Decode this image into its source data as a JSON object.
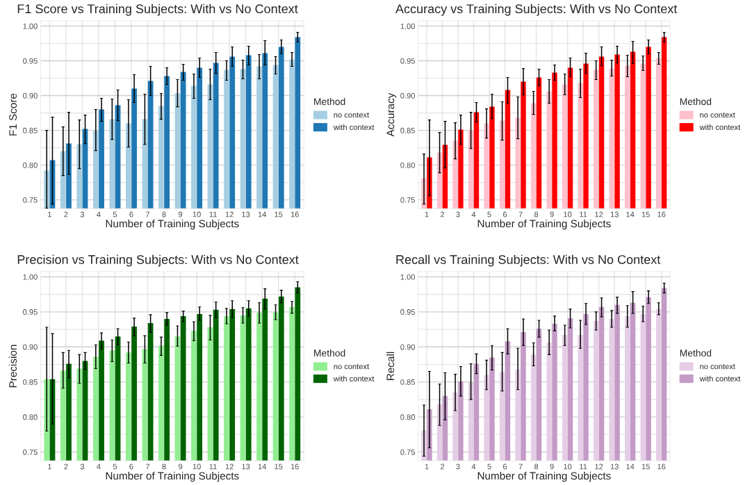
{
  "chart_data": [
    {
      "type": "bar",
      "title": "F1 Score vs Training Subjects: With vs No Context",
      "xlabel": "Number of Training Subjects",
      "ylabel": "F1 Score",
      "legend_title": "Method",
      "legend": "right",
      "grid": true,
      "categories": [
        "1",
        "2",
        "3",
        "4",
        "5",
        "6",
        "7",
        "8",
        "9",
        "10",
        "11",
        "12",
        "13",
        "14",
        "15",
        "16"
      ],
      "ylim": [
        0.7375,
        1.0075
      ],
      "yticks": [
        {
          "value": 0.75,
          "label": "0.75"
        },
        {
          "value": 0.8,
          "label": "0.80"
        },
        {
          "value": 0.85,
          "label": "0.85"
        },
        {
          "value": 0.9,
          "label": "0.90"
        },
        {
          "value": 0.95,
          "label": "0.95"
        },
        {
          "value": 1.0,
          "label": "1.00"
        }
      ],
      "series": [
        {
          "name": "no context",
          "color": "#a6cee3",
          "values": [
            0.792,
            0.82,
            0.83,
            0.85,
            0.866,
            0.86,
            0.866,
            0.885,
            0.903,
            0.914,
            0.916,
            0.937,
            0.938,
            0.942,
            0.944,
            0.952
          ],
          "errors": [
            [
              0.738,
              0.85
            ],
            [
              0.785,
              0.855
            ],
            [
              0.795,
              0.865
            ],
            [
              0.821,
              0.88
            ],
            [
              0.837,
              0.895
            ],
            [
              0.826,
              0.894
            ],
            [
              0.83,
              0.902
            ],
            [
              0.866,
              0.903
            ],
            [
              0.884,
              0.923
            ],
            [
              0.896,
              0.931
            ],
            [
              0.894,
              0.938
            ],
            [
              0.922,
              0.95
            ],
            [
              0.924,
              0.951
            ],
            [
              0.924,
              0.959
            ],
            [
              0.931,
              0.956
            ],
            [
              0.942,
              0.962
            ]
          ]
        },
        {
          "name": "with context",
          "color": "#1f78b4",
          "values": [
            0.807,
            0.831,
            0.852,
            0.88,
            0.886,
            0.91,
            0.921,
            0.928,
            0.934,
            0.94,
            0.947,
            0.956,
            0.958,
            0.961,
            0.97,
            0.984
          ],
          "errors": [
            [
              0.744,
              0.869
            ],
            [
              0.787,
              0.876
            ],
            [
              0.831,
              0.872
            ],
            [
              0.863,
              0.896
            ],
            [
              0.864,
              0.908
            ],
            [
              0.89,
              0.93
            ],
            [
              0.9,
              0.942
            ],
            [
              0.916,
              0.94
            ],
            [
              0.922,
              0.945
            ],
            [
              0.926,
              0.954
            ],
            [
              0.932,
              0.962
            ],
            [
              0.942,
              0.97
            ],
            [
              0.944,
              0.971
            ],
            [
              0.944,
              0.979
            ],
            [
              0.96,
              0.98
            ],
            [
              0.977,
              0.991
            ]
          ]
        }
      ]
    },
    {
      "type": "bar",
      "title": "Accuracy vs Training Subjects: With vs No Context",
      "xlabel": "Number of Training Subjects",
      "ylabel": "Accuracy",
      "legend_title": "Method",
      "legend": "right",
      "grid": true,
      "categories": [
        "1",
        "2",
        "3",
        "4",
        "5",
        "6",
        "7",
        "8",
        "9",
        "10",
        "11",
        "12",
        "13",
        "14",
        "15",
        "16"
      ],
      "ylim": [
        0.7375,
        1.0075
      ],
      "yticks": [
        {
          "value": 0.75,
          "label": "0.75"
        },
        {
          "value": 0.8,
          "label": "0.80"
        },
        {
          "value": 0.85,
          "label": "0.85"
        },
        {
          "value": 0.9,
          "label": "0.90"
        },
        {
          "value": 0.95,
          "label": "0.95"
        },
        {
          "value": 1.0,
          "label": "1.00"
        }
      ],
      "series": [
        {
          "name": "no context",
          "color": "#ffc0cb",
          "values": [
            0.781,
            0.818,
            0.835,
            0.85,
            0.86,
            0.864,
            0.868,
            0.889,
            0.906,
            0.916,
            0.918,
            0.937,
            0.939,
            0.943,
            0.946,
            0.954
          ],
          "errors": [
            [
              0.744,
              0.816
            ],
            [
              0.789,
              0.847
            ],
            [
              0.809,
              0.861
            ],
            [
              0.824,
              0.876
            ],
            [
              0.839,
              0.881
            ],
            [
              0.836,
              0.891
            ],
            [
              0.838,
              0.898
            ],
            [
              0.873,
              0.906
            ],
            [
              0.889,
              0.923
            ],
            [
              0.901,
              0.931
            ],
            [
              0.897,
              0.938
            ],
            [
              0.923,
              0.95
            ],
            [
              0.928,
              0.951
            ],
            [
              0.927,
              0.958
            ],
            [
              0.936,
              0.957
            ],
            [
              0.945,
              0.962
            ]
          ]
        },
        {
          "name": "with context",
          "color": "#ff0000",
          "values": [
            0.811,
            0.829,
            0.851,
            0.876,
            0.884,
            0.908,
            0.92,
            0.926,
            0.933,
            0.94,
            0.946,
            0.956,
            0.959,
            0.963,
            0.97,
            0.984
          ],
          "errors": [
            [
              0.756,
              0.865
            ],
            [
              0.796,
              0.863
            ],
            [
              0.83,
              0.872
            ],
            [
              0.862,
              0.89
            ],
            [
              0.867,
              0.902
            ],
            [
              0.889,
              0.926
            ],
            [
              0.901,
              0.939
            ],
            [
              0.914,
              0.938
            ],
            [
              0.922,
              0.944
            ],
            [
              0.927,
              0.954
            ],
            [
              0.932,
              0.961
            ],
            [
              0.943,
              0.97
            ],
            [
              0.947,
              0.971
            ],
            [
              0.946,
              0.978
            ],
            [
              0.96,
              0.98
            ],
            [
              0.977,
              0.991
            ]
          ]
        }
      ]
    },
    {
      "type": "bar",
      "title": "Precision vs Training Subjects: With vs No Context",
      "xlabel": "Number of Training Subjects",
      "ylabel": "Precision",
      "legend_title": "Method",
      "legend": "right",
      "grid": true,
      "categories": [
        "1",
        "2",
        "3",
        "4",
        "5",
        "6",
        "7",
        "8",
        "9",
        "10",
        "11",
        "12",
        "13",
        "14",
        "15",
        "16"
      ],
      "ylim": [
        0.7375,
        1.0075
      ],
      "yticks": [
        {
          "value": 0.75,
          "label": "0.75"
        },
        {
          "value": 0.8,
          "label": "0.80"
        },
        {
          "value": 0.85,
          "label": "0.85"
        },
        {
          "value": 0.9,
          "label": "0.90"
        },
        {
          "value": 0.95,
          "label": "0.95"
        },
        {
          "value": 1.0,
          "label": "1.00"
        }
      ],
      "series": [
        {
          "name": "no context",
          "color": "#90ee90",
          "values": [
            0.854,
            0.866,
            0.869,
            0.886,
            0.895,
            0.892,
            0.897,
            0.902,
            0.915,
            0.923,
            0.928,
            0.944,
            0.945,
            0.949,
            0.949,
            0.957
          ],
          "errors": [
            [
              0.78,
              0.928
            ],
            [
              0.841,
              0.892
            ],
            [
              0.848,
              0.889
            ],
            [
              0.869,
              0.903
            ],
            [
              0.879,
              0.91
            ],
            [
              0.877,
              0.907
            ],
            [
              0.877,
              0.916
            ],
            [
              0.888,
              0.914
            ],
            [
              0.901,
              0.93
            ],
            [
              0.909,
              0.936
            ],
            [
              0.91,
              0.945
            ],
            [
              0.933,
              0.955
            ],
            [
              0.934,
              0.956
            ],
            [
              0.934,
              0.963
            ],
            [
              0.939,
              0.96
            ],
            [
              0.948,
              0.965
            ]
          ]
        },
        {
          "name": "with context",
          "color": "#006400",
          "values": [
            0.854,
            0.876,
            0.88,
            0.909,
            0.915,
            0.929,
            0.934,
            0.94,
            0.944,
            0.947,
            0.953,
            0.954,
            0.955,
            0.969,
            0.972,
            0.985
          ],
          "errors": [
            [
              0.79,
              0.919
            ],
            [
              0.856,
              0.895
            ],
            [
              0.868,
              0.892
            ],
            [
              0.897,
              0.92
            ],
            [
              0.903,
              0.926
            ],
            [
              0.916,
              0.941
            ],
            [
              0.921,
              0.946
            ],
            [
              0.931,
              0.949
            ],
            [
              0.936,
              0.951
            ],
            [
              0.938,
              0.957
            ],
            [
              0.942,
              0.964
            ],
            [
              0.942,
              0.966
            ],
            [
              0.944,
              0.966
            ],
            [
              0.954,
              0.983
            ],
            [
              0.963,
              0.981
            ],
            [
              0.977,
              0.993
            ]
          ]
        }
      ]
    },
    {
      "type": "bar",
      "title": "Recall vs Training Subjects: With vs No Context",
      "xlabel": "Number of Training Subjects",
      "ylabel": "Recall",
      "legend_title": "Method",
      "legend": "right",
      "grid": true,
      "categories": [
        "1",
        "2",
        "3",
        "4",
        "5",
        "6",
        "7",
        "8",
        "9",
        "10",
        "11",
        "12",
        "13",
        "14",
        "15",
        "16"
      ],
      "ylim": [
        0.7375,
        1.0075
      ],
      "yticks": [
        {
          "value": 0.75,
          "label": "0.75"
        },
        {
          "value": 0.8,
          "label": "0.80"
        },
        {
          "value": 0.85,
          "label": "0.85"
        },
        {
          "value": 0.9,
          "label": "0.90"
        },
        {
          "value": 0.95,
          "label": "0.95"
        },
        {
          "value": 1.0,
          "label": "1.00"
        }
      ],
      "series": [
        {
          "name": "no context",
          "color": "#e6cde6",
          "values": [
            0.781,
            0.818,
            0.835,
            0.85,
            0.86,
            0.864,
            0.868,
            0.889,
            0.906,
            0.917,
            0.917,
            0.937,
            0.94,
            0.944,
            0.947,
            0.954
          ],
          "errors": [
            [
              0.744,
              0.817
            ],
            [
              0.788,
              0.847
            ],
            [
              0.809,
              0.861
            ],
            [
              0.825,
              0.876
            ],
            [
              0.839,
              0.881
            ],
            [
              0.837,
              0.892
            ],
            [
              0.839,
              0.898
            ],
            [
              0.873,
              0.906
            ],
            [
              0.889,
              0.924
            ],
            [
              0.902,
              0.931
            ],
            [
              0.898,
              0.938
            ],
            [
              0.924,
              0.95
            ],
            [
              0.928,
              0.952
            ],
            [
              0.928,
              0.959
            ],
            [
              0.936,
              0.958
            ],
            [
              0.946,
              0.963
            ]
          ]
        },
        {
          "name": "with context",
          "color": "#c49ac7",
          "values": [
            0.811,
            0.83,
            0.851,
            0.876,
            0.885,
            0.908,
            0.921,
            0.926,
            0.933,
            0.941,
            0.947,
            0.957,
            0.96,
            0.963,
            0.971,
            0.984
          ],
          "errors": [
            [
              0.756,
              0.865
            ],
            [
              0.796,
              0.863
            ],
            [
              0.83,
              0.872
            ],
            [
              0.862,
              0.89
            ],
            [
              0.867,
              0.902
            ],
            [
              0.89,
              0.926
            ],
            [
              0.902,
              0.94
            ],
            [
              0.914,
              0.938
            ],
            [
              0.923,
              0.944
            ],
            [
              0.927,
              0.954
            ],
            [
              0.932,
              0.962
            ],
            [
              0.943,
              0.97
            ],
            [
              0.948,
              0.971
            ],
            [
              0.948,
              0.979
            ],
            [
              0.962,
              0.98
            ],
            [
              0.977,
              0.991
            ]
          ]
        }
      ]
    }
  ]
}
